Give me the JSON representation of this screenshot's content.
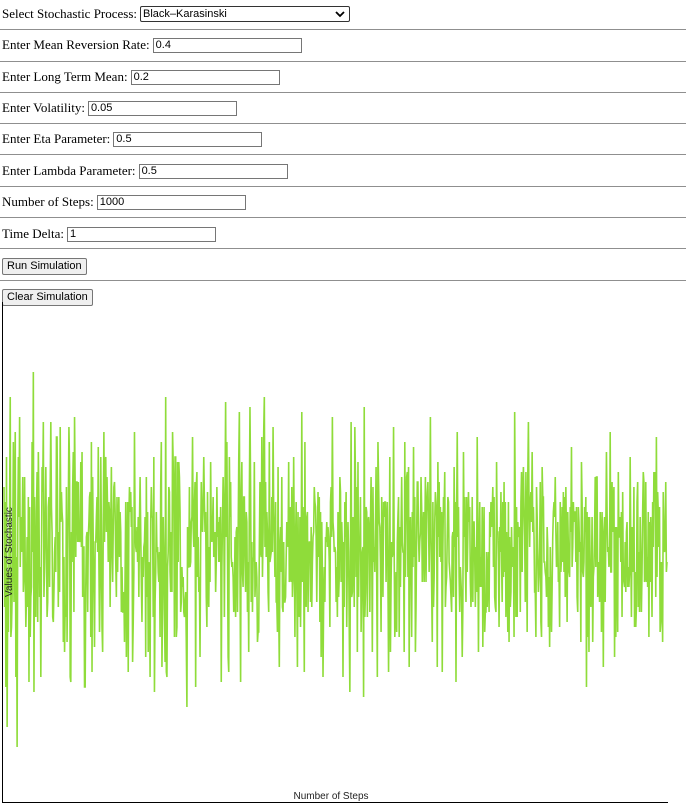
{
  "form": {
    "process_label": "Select Stochastic Process:",
    "process_value": "Black–Karasinski",
    "mean_reversion_label": "Enter Mean Reversion Rate:",
    "mean_reversion_value": "0.4",
    "long_term_mean_label": "Enter Long Term Mean:",
    "long_term_mean_value": "0.2",
    "volatility_label": "Enter Volatility:",
    "volatility_value": "0.05",
    "eta_label": "Enter Eta Parameter:",
    "eta_value": "0.5",
    "lambda_label": "Enter Lambda Parameter:",
    "lambda_value": "0.5",
    "steps_label": "Number of Steps:",
    "steps_value": "1000",
    "time_delta_label": "Time Delta:",
    "time_delta_value": "1"
  },
  "buttons": {
    "run_label": "Run Simulation",
    "clear_label": "Clear Simulation"
  },
  "colors": {
    "line": "#8fdc3a"
  },
  "chart_data": {
    "type": "line",
    "xlabel": "Number of Steps",
    "ylabel": "Values of Stochastic",
    "x_range": [
      0,
      1000
    ],
    "y_range": [
      0.0,
      1.0
    ],
    "grid": false,
    "legend": "none",
    "series": [
      {
        "values": [
          0.63,
          0.39,
          0.6,
          0.23,
          0.69,
          0.15,
          0.46,
          0.34,
          0.49,
          0.59,
          0.81,
          0.33,
          0.35,
          0.41,
          0.52,
          0.72,
          0.4,
          0.58,
          0.74,
          0.25,
          0.49,
          0.11,
          0.55,
          0.69,
          0.57,
          0.77,
          0.47,
          0.57,
          0.5,
          0.52,
          0.65,
          0.42,
          0.45,
          0.65,
          0.47,
          0.35,
          0.41,
          0.53,
          0.39,
          0.61,
          0.24,
          0.59,
          0.33,
          0.41,
          0.43,
          0.72,
          0.5,
          0.86,
          0.22,
          0.61,
          0.41,
          0.37,
          0.58,
          0.66,
          0.36,
          0.7,
          0.59,
          0.41,
          0.47,
          0.25,
          0.49,
          0.67,
          0.62,
          0.76,
          0.41,
          0.47,
          0.57,
          0.67,
          0.5,
          0.37,
          0.4,
          0.59,
          0.61,
          0.43,
          0.63,
          0.76,
          0.59,
          0.54,
          0.37,
          0.36,
          0.42,
          0.5,
          0.53,
          0.46,
          0.73,
          0.73,
          0.54,
          0.39,
          0.54,
          0.42,
          0.75,
          0.56,
          0.62,
          0.58,
          0.56,
          0.32,
          0.49,
          0.3,
          0.39,
          0.37,
          0.63,
          0.32,
          0.47,
          0.59,
          0.75,
          0.67,
          0.25,
          0.24,
          0.54,
          0.48,
          0.63,
          0.7,
          0.38,
          0.77,
          0.63,
          0.49,
          0.64,
          0.64,
          0.52,
          0.64,
          0.52,
          0.53,
          0.52,
          0.68,
          0.51,
          0.7,
          0.41,
          0.51,
          0.51,
          0.23,
          0.23,
          0.43,
          0.53,
          0.54,
          0.38,
          0.53,
          0.56,
          0.61,
          0.62,
          0.33,
          0.72,
          0.26,
          0.65,
          0.51,
          0.42,
          0.31,
          0.52,
          0.52,
          0.57,
          0.61,
          0.5,
          0.71,
          0.48,
          0.34,
          0.43,
          0.69,
          0.54,
          0.35,
          0.3,
          0.56,
          0.74,
          0.52,
          0.68,
          0.69,
          0.54,
          0.65,
          0.58,
          0.48,
          0.6,
          0.58,
          0.39,
          0.55,
          0.67,
          0.5,
          0.44,
          0.55,
          0.63,
          0.64,
          0.58,
          0.48,
          0.41,
          0.61,
          0.46,
          0.56,
          0.61,
          0.49,
          0.58,
          0.54,
          0.38,
          0.47,
          0.38,
          0.38,
          0.42,
          0.32,
          0.46,
          0.6,
          0.29,
          0.47,
          0.6,
          0.26,
          0.57,
          0.63,
          0.58,
          0.62,
          0.55,
          0.59,
          0.28,
          0.36,
          0.46,
          0.74,
          0.55,
          0.51,
          0.5,
          0.55,
          0.48,
          0.57,
          0.41,
          0.56,
          0.65,
          0.54,
          0.44,
          0.36,
          0.49,
          0.45,
          0.51,
          0.52,
          0.57,
          0.29,
          0.65,
          0.41,
          0.58,
          0.3,
          0.48,
          0.46,
          0.25,
          0.56,
          0.63,
          0.57,
          0.57,
          0.37,
          0.69,
          0.22,
          0.4,
          0.46,
          0.58,
          0.5,
          0.51,
          0.46,
          0.44,
          0.5,
          0.33,
          0.63,
          0.72,
          0.27,
          0.39,
          0.57,
          0.5,
          0.38,
          0.28,
          0.81,
          0.26,
          0.25,
          0.47,
          0.5,
          0.63,
          0.62,
          0.46,
          0.42,
          0.54,
          0.42,
          0.74,
          0.68,
          0.61,
          0.33,
          0.69,
          0.69,
          0.33,
          0.35,
          0.68,
          0.48,
          0.68,
          0.65,
          0.58,
          0.38,
          0.4,
          0.47,
          0.43,
          0.45,
          0.38,
          0.37,
          0.4,
          0.42,
          0.32,
          0.19,
          0.55,
          0.47,
          0.47,
          0.63,
          0.47,
          0.48,
          0.56,
          0.57,
          0.73,
          0.55,
          0.51,
          0.59,
          0.64,
          0.23,
          0.63,
          0.66,
          0.45,
          0.53,
          0.42,
          0.45,
          0.29,
          0.52,
          0.64,
          0.56,
          0.54,
          0.6,
          0.69,
          0.6,
          0.54,
          0.58,
          0.41,
          0.35,
          0.62,
          0.42,
          0.39,
          0.51,
          0.44,
          0.68,
          0.54,
          0.52,
          0.55,
          0.61,
          0.49,
          0.5,
          0.54,
          0.42,
          0.48,
          0.63,
          0.53,
          0.56,
          0.48,
          0.57,
          0.48,
          0.59,
          0.24,
          0.47,
          0.56,
          0.65,
          0.58,
          0.37,
          0.6,
          0.8,
          0.53,
          0.72,
          0.5,
          0.29,
          0.26,
          0.69,
          0.57,
          0.64,
          0.49,
          0.47,
          0.48,
          0.45,
          0.38,
          0.39,
          0.53,
          0.37,
          0.54,
          0.55,
          0.38,
          0.52,
          0.68,
          0.78,
          0.46,
          0.24,
          0.62,
          0.68,
          0.46,
          0.43,
          0.61,
          0.61,
          0.48,
          0.42,
          0.58,
          0.56,
          0.38,
          0.48,
          0.3,
          0.61,
          0.79,
          0.63,
          0.4,
          0.52,
          0.38,
          0.48,
          0.49,
          0.68,
          0.41,
          0.45,
          0.48,
          0.45,
          0.32,
          0.34,
          0.34,
          0.51,
          0.64,
          0.5,
          0.49,
          0.73,
          0.45,
          0.54,
          0.74,
          0.81,
          0.51,
          0.64,
          0.49,
          0.58,
          0.54,
          0.42,
          0.38,
          0.72,
          0.48,
          0.49,
          0.5,
          0.61,
          0.5,
          0.75,
          0.58,
          0.53,
          0.45,
          0.6,
          0.4,
          0.4,
          0.34,
          0.67,
          0.39,
          0.27,
          0.52,
          0.55,
          0.46,
          0.65,
          0.39,
          0.38,
          0.52,
          0.4,
          0.4,
          0.41,
          0.49,
          0.56,
          0.55,
          0.51,
          0.68,
          0.44,
          0.45,
          0.59,
          0.44,
          0.63,
          0.41,
          0.45,
          0.69,
          0.52,
          0.33,
          0.52,
          0.6,
          0.44,
          0.27,
          0.58,
          0.39,
          0.37,
          0.57,
          0.35,
          0.47,
          0.78,
          0.44,
          0.59,
          0.48,
          0.26,
          0.72,
          0.41,
          0.39,
          0.57,
          0.58,
          0.38,
          0.51,
          0.52,
          0.52,
          0.4,
          0.55,
          0.39,
          0.48,
          0.53,
          0.54,
          0.63,
          0.6,
          0.59,
          0.53,
          0.4,
          0.53,
          0.62,
          0.49,
          0.61,
          0.36,
          0.58,
          0.29,
          0.56,
          0.46,
          0.25,
          0.4,
          0.47,
          0.4,
          0.53,
          0.52,
          0.56,
          0.51,
          0.55,
          0.53,
          0.48,
          0.35,
          0.6,
          0.63,
          0.53,
          0.77,
          0.56,
          0.54,
          0.5,
          0.51,
          0.5,
          0.4,
          0.47,
          0.37,
          0.58,
          0.41,
          0.45,
          0.65,
          0.62,
          0.44,
          0.56,
          0.51,
          0.25,
          0.52,
          0.39,
          0.6,
          0.53,
          0.62,
          0.35,
          0.49,
          0.56,
          0.5,
          0.35,
          0.22,
          0.51,
          0.76,
          0.41,
          0.42,
          0.57,
          0.52,
          0.39,
          0.75,
          0.64,
          0.45,
          0.63,
          0.3,
          0.68,
          0.41,
          0.52,
          0.52,
          0.61,
          0.34,
          0.42,
          0.5,
          0.51,
          0.21,
          0.79,
          0.37,
          0.42,
          0.59,
          0.58,
          0.37,
          0.56,
          0.57,
          0.54,
          0.38,
          0.56,
          0.65,
          0.51,
          0.3,
          0.63,
          0.48,
          0.51,
          0.46,
          0.55,
          0.67,
          0.45,
          0.25,
          0.72,
          0.64,
          0.56,
          0.55,
          0.48,
          0.34,
          0.61,
          0.51,
          0.41,
          0.6,
          0.57,
          0.6,
          0.6,
          0.44,
          0.56,
          0.6,
          0.45,
          0.26,
          0.45,
          0.69,
          0.3,
          0.44,
          0.52,
          0.49,
          0.5,
          0.75,
          0.5,
          0.33,
          0.38,
          0.46,
          0.34,
          0.52,
          0.57,
          0.61,
          0.33,
          0.55,
          0.43,
          0.54,
          0.65,
          0.52,
          0.5,
          0.5,
          0.3,
          0.72,
          0.45,
          0.58,
          0.65,
          0.66,
          0.45,
          0.67,
          0.27,
          0.52,
          0.57,
          0.47,
          0.33,
          0.58,
          0.47,
          0.71,
          0.49,
          0.61,
          0.3,
          0.39,
          0.54,
          0.64,
          0.64,
          0.53,
          0.48,
          0.52,
          0.54,
          0.65,
          0.59,
          0.44,
          0.54,
          0.58,
          0.44,
          0.52,
          0.65,
          0.44,
          0.58,
          0.62,
          0.64,
          0.56,
          0.46,
          0.57,
          0.77,
          0.53,
          0.43,
          0.32,
          0.6,
          0.39,
          0.45,
          0.56,
          0.62,
          0.6,
          0.57,
          0.27,
          0.68,
          0.53,
          0.64,
          0.49,
          0.59,
          0.48,
          0.58,
          0.26,
          0.51,
          0.61,
          0.58,
          0.66,
          0.39,
          0.43,
          0.45,
          0.53,
          0.61,
          0.6,
          0.48,
          0.46,
          0.44,
          0.41,
          0.38,
          0.53,
          0.54,
          0.41,
          0.67,
          0.51,
          0.6,
          0.24,
          0.57,
          0.74,
          0.53,
          0.59,
          0.45,
          0.38,
          0.47,
          0.44,
          0.41,
          0.29,
          0.39,
          0.7,
          0.53,
          0.61,
          0.48,
          0.4,
          0.61,
          0.46,
          0.54,
          0.62,
          0.56,
          0.59,
          0.44,
          0.39,
          0.45,
          0.61,
          0.4,
          0.56,
          0.56,
          0.49,
          0.39,
          0.51,
          0.42,
          0.73,
          0.53,
          0.3,
          0.52,
          0.6,
          0.43,
          0.49,
          0.43,
          0.59,
          0.31,
          0.5,
          0.59,
          0.34,
          0.38,
          0.38,
          0.5,
          0.39,
          0.45,
          0.5,
          0.38,
          0.58,
          0.53,
          0.6,
          0.55,
          0.58,
          0.63,
          0.47,
          0.61,
          0.41,
          0.39,
          0.38,
          0.68,
          0.54,
          0.54,
          0.48,
          0.35,
          0.55,
          0.5,
          0.62,
          0.48,
          0.4,
          0.6,
          0.45,
          0.64,
          0.46,
          0.6,
          0.37,
          0.54,
          0.46,
          0.34,
          0.6,
          0.32,
          0.53,
          0.39,
          0.42,
          0.55,
          0.47,
          0.49,
          0.51,
          0.33,
          0.78,
          0.58,
          0.37,
          0.59,
          0.37,
          0.56,
          0.53,
          0.54,
          0.55,
          0.38,
          0.6,
          0.66,
          0.46,
          0.61,
          0.67,
          0.59,
          0.53,
          0.4,
          0.66,
          0.54,
          0.34,
          0.65,
          0.76,
          0.59,
          0.51,
          0.6,
          0.62,
          0.56,
          0.7,
          0.54,
          0.59,
          0.53,
          0.42,
          0.42,
          0.33,
          0.63,
          0.57,
          0.48,
          0.42,
          0.45,
          0.51,
          0.64,
          0.36,
          0.33,
          0.67,
          0.61,
          0.61,
          0.48,
          0.48,
          0.46,
          0.45,
          0.41,
          0.55,
          0.51,
          0.35,
          0.45,
          0.31,
          0.51,
          0.41,
          0.34,
          0.43,
          0.53,
          0.58,
          0.6,
          0.57,
          0.65,
          0.54,
          0.47,
          0.48,
          0.56,
          0.44,
          0.46,
          0.35,
          0.6,
          0.46,
          0.49,
          0.59,
          0.48,
          0.62,
          0.46,
          0.61,
          0.41,
          0.63,
          0.52,
          0.36,
          0.58,
          0.51,
          0.46,
          0.45,
          0.59,
          0.54,
          0.71,
          0.47,
          0.51,
          0.6,
          0.56,
          0.58,
          0.58,
          0.48,
          0.59,
          0.41,
          0.38,
          0.59,
          0.56,
          0.5,
          0.52,
          0.32,
          0.68,
          0.6,
          0.46,
          0.45,
          0.48,
          0.59,
          0.54,
          0.61,
          0.23,
          0.58,
          0.33,
          0.57,
          0.3,
          0.57,
          0.45,
          0.39,
          0.45,
          0.57,
          0.32,
          0.45,
          0.47,
          0.54,
          0.65,
          0.47,
          0.65,
          0.65,
          0.41,
          0.48,
          0.45,
          0.4,
          0.58,
          0.53,
          0.34,
          0.58,
          0.5,
          0.27,
          0.54,
          0.57,
          0.4,
          0.54,
          0.7,
          0.58,
          0.5,
          0.51,
          0.47,
          0.48,
          0.74,
          0.46,
          0.46,
          0.64,
          0.54,
          0.6,
          0.63,
          0.29,
          0.55,
          0.33,
          0.55,
          0.48,
          0.34,
          0.66,
          0.53,
          0.53,
          0.57,
          0.48,
          0.58,
          0.37,
          0.62,
          0.45,
          0.44,
          0.43,
          0.52,
          0.42,
          0.54,
          0.56,
          0.43,
          0.47,
          0.43,
          0.46,
          0.69,
          0.51,
          0.37,
          0.55,
          0.53,
          0.46,
          0.63,
          0.35,
          0.46,
          0.35,
          0.39,
          0.6,
          0.64,
          0.39,
          0.5,
          0.38,
          0.57,
          0.48,
          0.38,
          0.46,
          0.58,
          0.66,
          0.64,
          0.44,
          0.45,
          0.64,
          0.44,
          0.49,
          0.43,
          0.58,
          0.33,
          0.56,
          0.44,
          0.57,
          0.48,
          0.37,
          0.6,
          0.51,
          0.66,
          0.6,
          0.66,
          0.41,
          0.73,
          0.45,
          0.62,
          0.58,
          0.51,
          0.59,
          0.34,
          0.36,
          0.48,
          0.42,
          0.32,
          0.62,
          0.55,
          0.5,
          0.51,
          0.64,
          0.46,
          0.48
        ]
      }
    ]
  }
}
